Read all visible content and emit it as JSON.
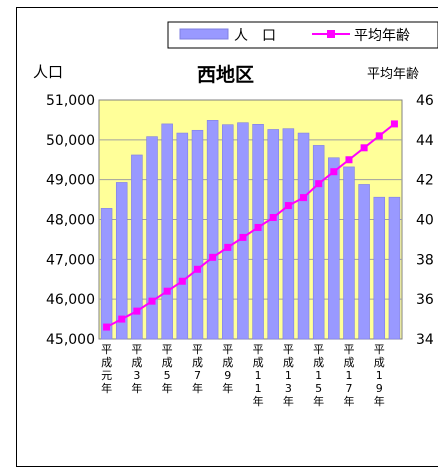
{
  "chart_data": {
    "type": "bar",
    "title": "西地区",
    "legend": {
      "position": "top-right",
      "bar_label": "人　口",
      "line_label": "平均年齢"
    },
    "y_left_label": "人口",
    "y_right_label": "平均年齢",
    "y_left_ticks": [
      "51,000",
      "50,000",
      "49,000",
      "48,000",
      "47,000",
      "46,000",
      "45,000"
    ],
    "y_right_ticks": [
      "46",
      "44",
      "42",
      "40",
      "38",
      "36",
      "34"
    ],
    "y_left_range": [
      45000,
      51000
    ],
    "y_right_range": [
      34,
      46
    ],
    "x_labels": [
      "平成元年",
      "平成3年",
      "平成5年",
      "平成7年",
      "平成9年",
      "平成11年",
      "平成13年",
      "平成15年",
      "平成17年",
      "平成19年"
    ],
    "years": [
      1,
      2,
      3,
      4,
      5,
      6,
      7,
      8,
      9,
      10,
      11,
      12,
      13,
      14,
      15,
      16,
      17,
      18,
      19,
      20
    ],
    "series": [
      {
        "name": "人　口",
        "type": "bar",
        "axis": "left",
        "values": [
          48280,
          48930,
          49620,
          50080,
          50400,
          50170,
          50240,
          50490,
          50380,
          50430,
          50390,
          50260,
          50280,
          50170,
          49860,
          49550,
          49320,
          48880,
          48560,
          48560
        ]
      },
      {
        "name": "平均年齢",
        "type": "line",
        "axis": "right",
        "values": [
          34.6,
          35.0,
          35.4,
          35.9,
          36.4,
          36.9,
          37.5,
          38.1,
          38.6,
          39.1,
          39.6,
          40.1,
          40.7,
          41.1,
          41.8,
          42.4,
          43.0,
          43.6,
          44.2,
          44.8
        ]
      }
    ],
    "colors": {
      "bar": "#9999ff",
      "bar_edge": "#8080e0",
      "line": "#ff00ff",
      "plot_bg": "#ffff99"
    }
  }
}
